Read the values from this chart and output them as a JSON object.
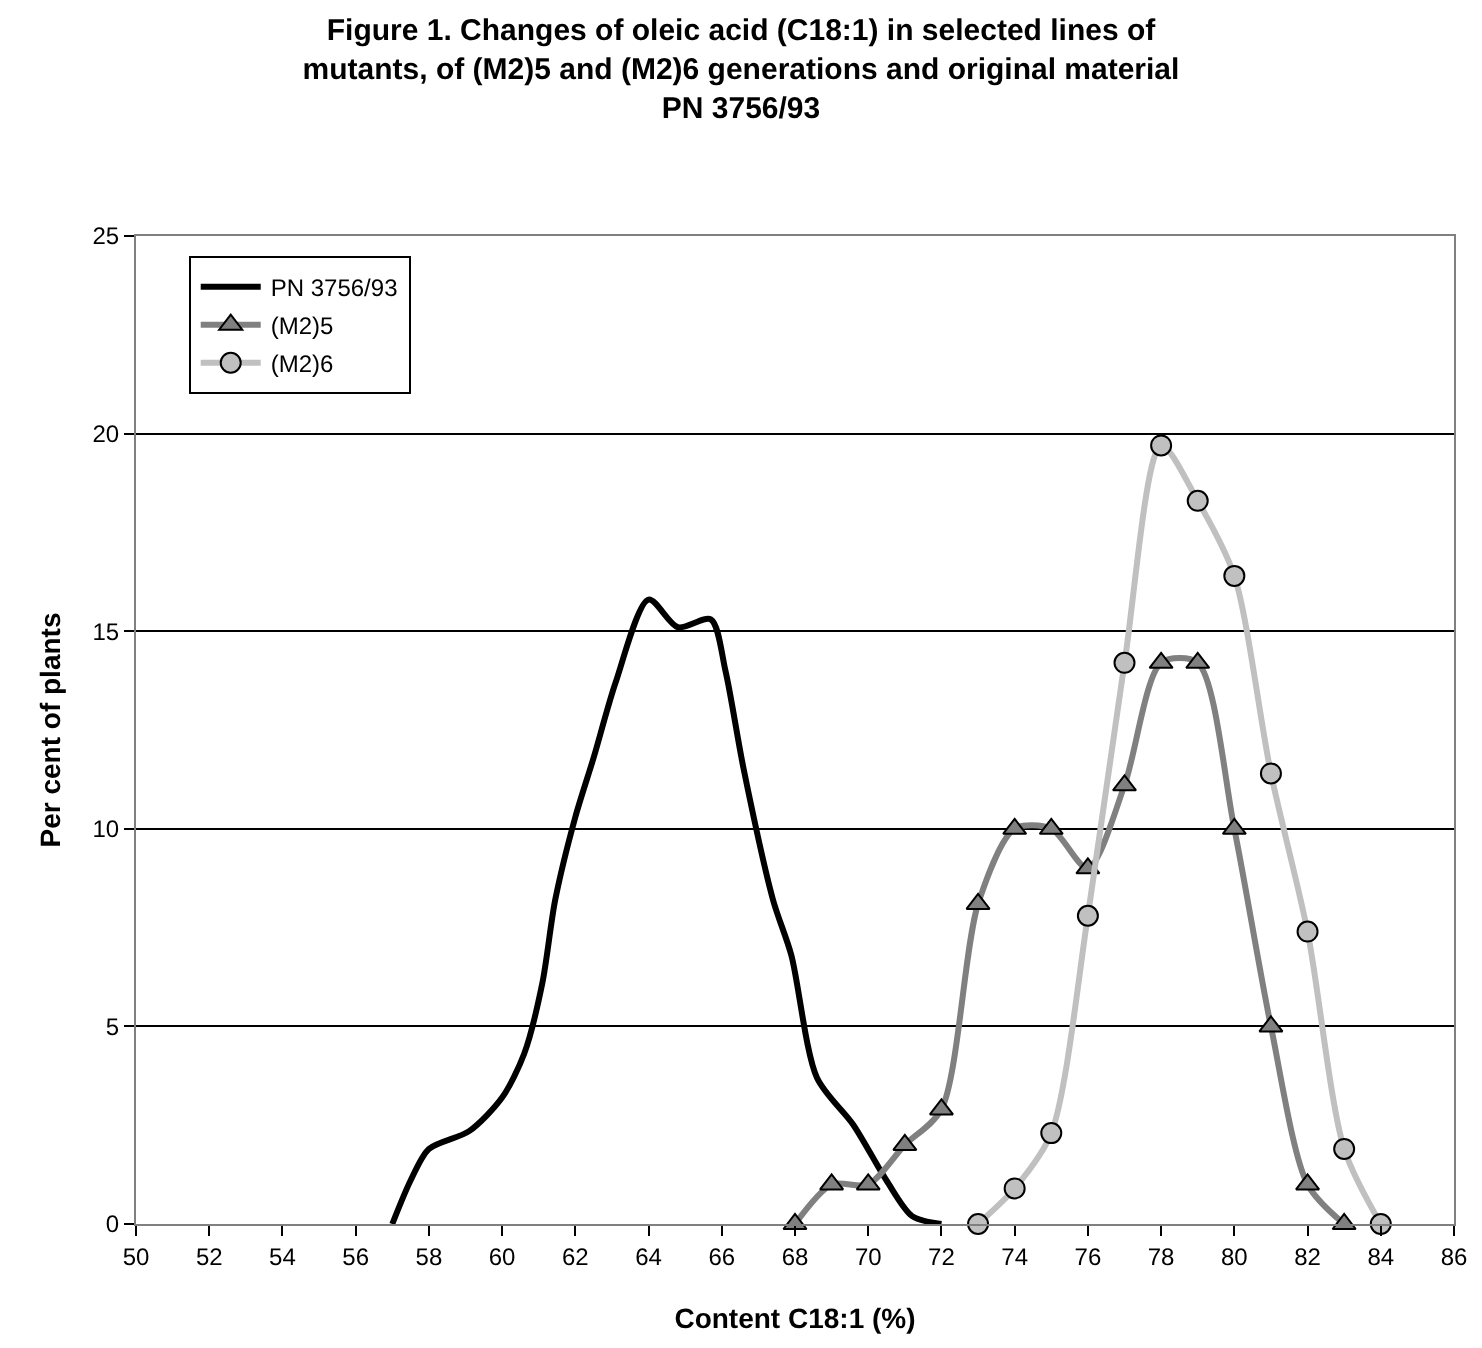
{
  "chart_data": {
    "type": "line",
    "title": "Figure 1. Changes of oleic acid (C18:1) in selected lines of mutants, of (M2)5 and (M2)6 generations and original material PN 3756/93",
    "xlabel": "Content C18:1 (%)",
    "ylabel": "Per cent of plants",
    "xlim": [
      50,
      86
    ],
    "xticks": [
      50,
      52,
      54,
      56,
      58,
      60,
      62,
      64,
      66,
      68,
      70,
      72,
      74,
      76,
      78,
      80,
      82,
      84,
      86
    ],
    "ylim": [
      0,
      25
    ],
    "yticks": [
      0,
      5,
      10,
      15,
      20,
      25
    ],
    "grid": "y",
    "legend": "top left",
    "line_style": "solid",
    "series": [
      {
        "name": "PN 3756/93",
        "color": "#000000",
        "marker": "none",
        "x": [
          57,
          57.5,
          58,
          59.1,
          60,
          60.6,
          61.1,
          61.45,
          62,
          62.5,
          63.1,
          64,
          64.8,
          65.7,
          66.1,
          66.6,
          67.4,
          67.9,
          68.6,
          69.6,
          70.5,
          71.2,
          72
        ],
        "values": [
          0,
          1.1,
          1.9,
          2.35,
          3.2,
          4.3,
          6.1,
          8.2,
          10.3,
          11.8,
          13.7,
          15.8,
          15.1,
          15.3,
          14,
          11.5,
          8.2,
          6.8,
          3.7,
          2.5,
          1.1,
          0.2,
          0
        ]
      },
      {
        "name": "(M2)5",
        "color": "#808080",
        "marker": "triangle",
        "x": [
          68,
          69,
          70,
          71,
          72,
          73,
          74,
          75,
          76,
          77,
          78,
          79,
          80,
          81,
          82,
          83
        ],
        "values": [
          0,
          1,
          1,
          2,
          2.9,
          8.1,
          10,
          10,
          9,
          11.1,
          14.2,
          14.2,
          10,
          5,
          1,
          0
        ]
      },
      {
        "name": "(M2)6",
        "color": "#c0c0c0",
        "marker": "circle",
        "x": [
          73,
          74,
          75,
          76,
          77,
          78,
          79,
          80,
          81,
          82,
          83,
          84
        ],
        "values": [
          0,
          0.9,
          2.3,
          7.8,
          14.2,
          19.7,
          18.3,
          16.4,
          11.4,
          7.4,
          1.9,
          0
        ]
      }
    ]
  }
}
